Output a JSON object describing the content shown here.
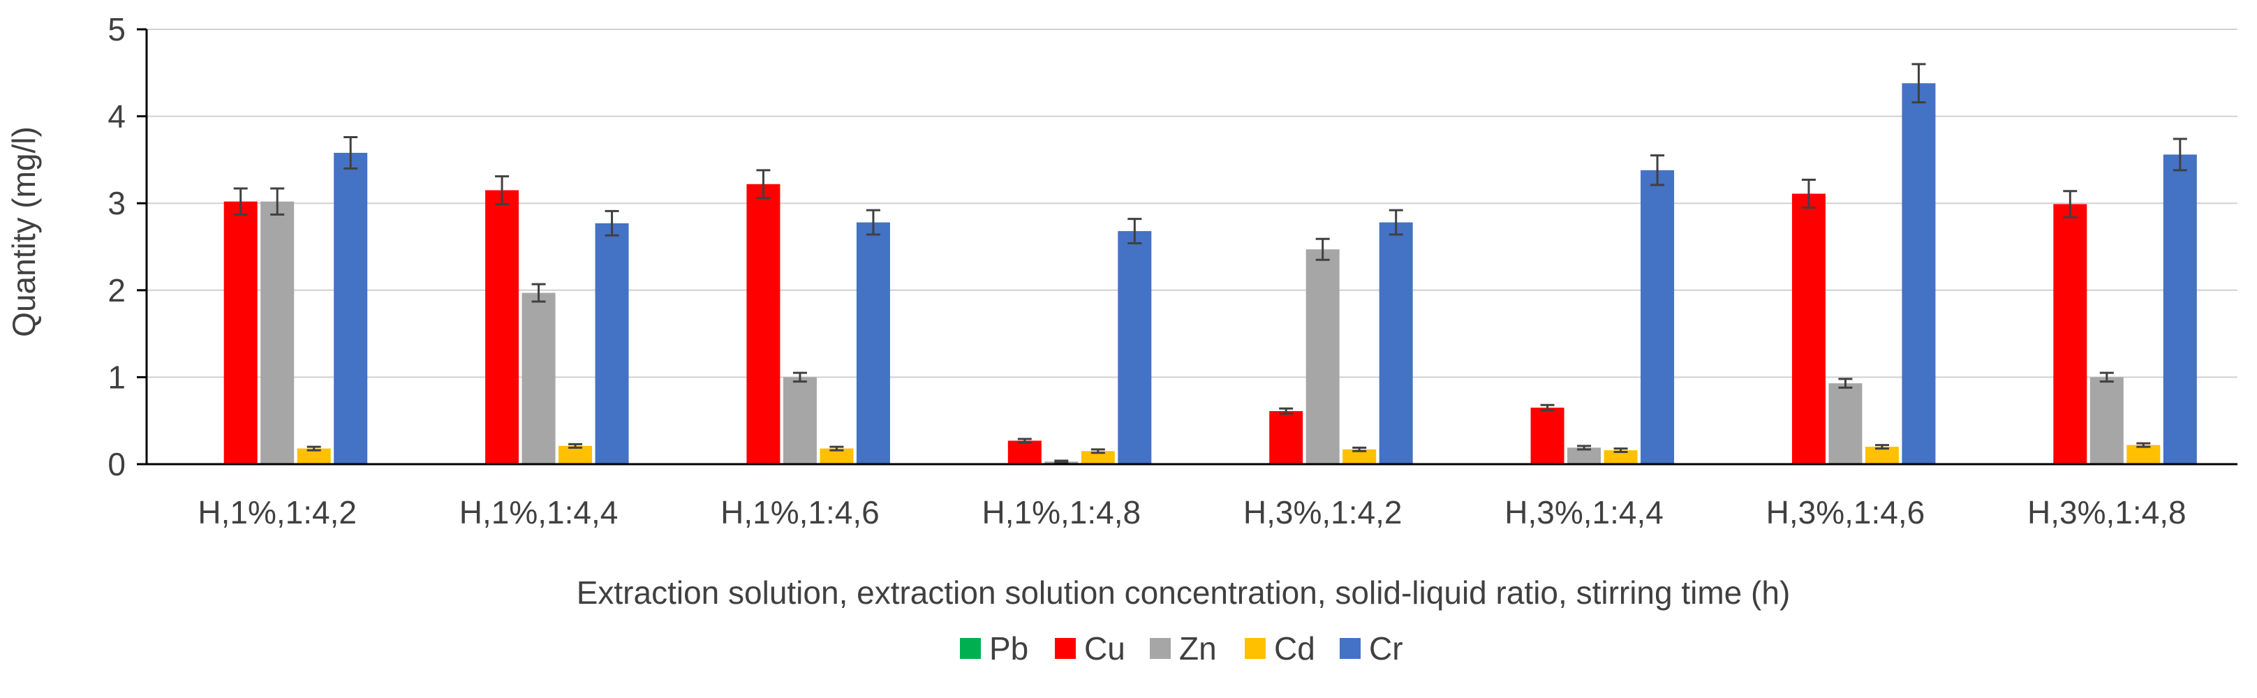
{
  "chart_data": {
    "type": "bar",
    "title": "",
    "xlabel": "Extraction solution, extraction solution concentration, solid-liquid ratio, stirring time (h)",
    "ylabel": "Quantity (mg/l)",
    "ylim": [
      0,
      5
    ],
    "yticks": [
      "0",
      "1",
      "2",
      "3",
      "4",
      "5"
    ],
    "grid": "horizontal",
    "legend_position": "bottom-center",
    "categories": [
      "H,1%,1:4,2",
      "H,1%,1:4,4",
      "H,1%,1:4,6",
      "H,1%,1:4,8",
      "H,3%,1:4,2",
      "H,3%,1:4,4",
      "H,3%,1:4,6",
      "H,3%,1:4,8"
    ],
    "series": [
      {
        "name": "Pb",
        "color": "#00B050",
        "values": [
          0,
          0,
          0,
          0,
          0,
          0,
          0,
          0
        ],
        "errors": [
          0,
          0,
          0,
          0,
          0,
          0,
          0,
          0
        ]
      },
      {
        "name": "Cu",
        "color": "#FF0000",
        "values": [
          3.02,
          3.15,
          3.22,
          0.27,
          0.61,
          0.65,
          3.11,
          2.99
        ],
        "errors": [
          0.15,
          0.16,
          0.16,
          0.02,
          0.03,
          0.03,
          0.16,
          0.15
        ]
      },
      {
        "name": "Zn",
        "color": "#A6A6A6",
        "values": [
          3.02,
          1.97,
          1.0,
          0.03,
          2.47,
          0.19,
          0.93,
          1.0
        ],
        "errors": [
          0.15,
          0.1,
          0.05,
          0.01,
          0.12,
          0.02,
          0.05,
          0.05
        ]
      },
      {
        "name": "Cd",
        "color": "#FFC000",
        "values": [
          0.18,
          0.21,
          0.18,
          0.15,
          0.17,
          0.16,
          0.2,
          0.22
        ],
        "errors": [
          0.02,
          0.02,
          0.02,
          0.02,
          0.02,
          0.02,
          0.02,
          0.02
        ]
      },
      {
        "name": "Cr",
        "color": "#4472C4",
        "values": [
          3.58,
          2.77,
          2.78,
          2.68,
          2.78,
          3.38,
          4.38,
          3.56
        ],
        "errors": [
          0.18,
          0.14,
          0.14,
          0.14,
          0.14,
          0.17,
          0.22,
          0.18
        ]
      }
    ]
  }
}
